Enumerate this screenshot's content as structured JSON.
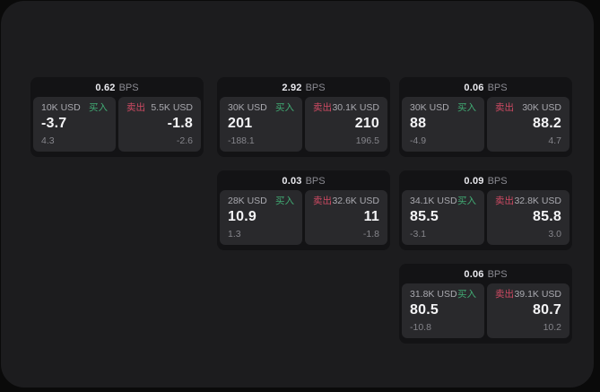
{
  "labels": {
    "bps": "BPS",
    "buy": "买入",
    "sell": "卖出"
  },
  "colors": {
    "page_bg": "#0a0a0a",
    "window_bg": "#1c1c1e",
    "card_bg": "#131315",
    "panel_bg": "#29292c",
    "buy_green": "#41ab74",
    "sell_red": "#cf4a63",
    "value_white": "#f4f4f6",
    "muted_gray": "#85858b"
  },
  "cards": [
    {
      "bps": "0.62",
      "grid": {
        "row": 0,
        "col": 0
      },
      "buy": {
        "amount": "10K USD",
        "value": "-3.7",
        "sub": "4.3"
      },
      "sell": {
        "amount": "5.5K USD",
        "value": "-1.8",
        "sub": "-2.6"
      }
    },
    {
      "bps": "2.92",
      "grid": {
        "row": 0,
        "col": 1
      },
      "buy": {
        "amount": "30K USD",
        "value": "201",
        "sub": "-188.1"
      },
      "sell": {
        "amount": "30.1K USD",
        "value": "210",
        "sub": "196.5"
      }
    },
    {
      "bps": "0.06",
      "grid": {
        "row": 0,
        "col": 2
      },
      "buy": {
        "amount": "30K USD",
        "value": "88",
        "sub": "-4.9"
      },
      "sell": {
        "amount": "30K USD",
        "value": "88.2",
        "sub": "4.7"
      }
    },
    {
      "bps": "0.03",
      "grid": {
        "row": 1,
        "col": 1
      },
      "buy": {
        "amount": "28K USD",
        "value": "10.9",
        "sub": "1.3"
      },
      "sell": {
        "amount": "32.6K USD",
        "value": "11",
        "sub": "-1.8"
      }
    },
    {
      "bps": "0.09",
      "grid": {
        "row": 1,
        "col": 2
      },
      "buy": {
        "amount": "34.1K USD",
        "value": "85.5",
        "sub": "-3.1"
      },
      "sell": {
        "amount": "32.8K USD",
        "value": "85.8",
        "sub": "3.0"
      }
    },
    {
      "bps": "0.06",
      "grid": {
        "row": 2,
        "col": 2
      },
      "buy": {
        "amount": "31.8K USD",
        "value": "80.5",
        "sub": "-10.8"
      },
      "sell": {
        "amount": "39.1K USD",
        "value": "80.7",
        "sub": "10.2"
      }
    }
  ]
}
